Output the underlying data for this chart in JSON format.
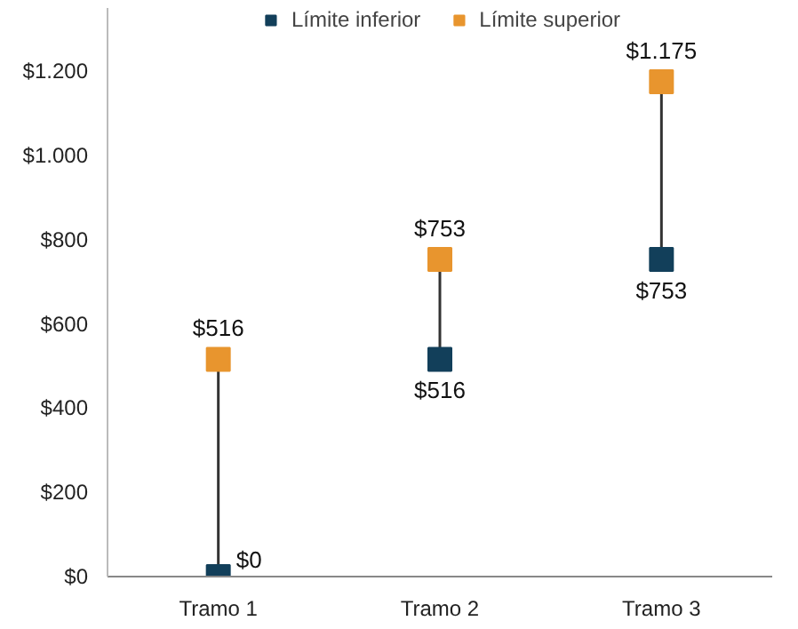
{
  "chart_data": {
    "type": "scatter",
    "categories": [
      "Tramo 1",
      "Tramo 2",
      "Tramo 3"
    ],
    "series": [
      {
        "name": "Límite inferior",
        "color": "#123f5a",
        "values": [
          0,
          516,
          753
        ],
        "value_labels": [
          "$0",
          "$516",
          "$753"
        ]
      },
      {
        "name": "Límite superior",
        "color": "#e8952e",
        "values": [
          516,
          753,
          1175
        ],
        "value_labels": [
          "$516",
          "$753",
          "$1.175"
        ]
      }
    ],
    "ylim": [
      0,
      1350
    ],
    "yticks": [
      {
        "value": 0,
        "label": "$0"
      },
      {
        "value": 200,
        "label": "$200"
      },
      {
        "value": 400,
        "label": "$400"
      },
      {
        "value": 600,
        "label": "$600"
      },
      {
        "value": 800,
        "label": "$800"
      },
      {
        "value": 1000,
        "label": "$1.000"
      },
      {
        "value": 1200,
        "label": "$1.200"
      }
    ],
    "marker": "square",
    "legend": "top",
    "grid": false
  }
}
